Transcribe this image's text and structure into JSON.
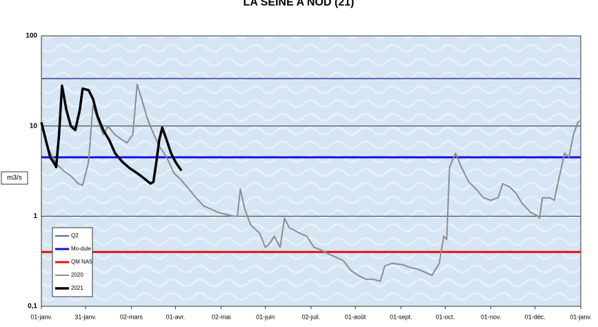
{
  "chart_data": {
    "type": "line",
    "title": "LA SEINE A NOD (21)",
    "y_label": "m3/s",
    "log_y": true,
    "grid": true,
    "legend": "lower left",
    "xlim": [
      0,
      366
    ],
    "xticks": [
      {
        "value": 0,
        "label": "01-janv."
      },
      {
        "value": 30,
        "label": "31-janv."
      },
      {
        "value": 61,
        "label": "02-mars"
      },
      {
        "value": 91,
        "label": "01-avr."
      },
      {
        "value": 122,
        "label": "02-mai"
      },
      {
        "value": 152,
        "label": "01-juin"
      },
      {
        "value": 183,
        "label": "02-juil."
      },
      {
        "value": 213,
        "label": "01-août"
      },
      {
        "value": 244,
        "label": "01-sept."
      },
      {
        "value": 274,
        "label": "01-oct."
      },
      {
        "value": 305,
        "label": "01-nov."
      },
      {
        "value": 335,
        "label": "01-déc."
      },
      {
        "value": 366,
        "label": "01-janv."
      }
    ],
    "ylim": [
      0.1,
      100
    ],
    "yticks": [
      {
        "value": 0.1,
        "label": "0,1"
      },
      1,
      10,
      100
    ],
    "series": [
      {
        "name": "Q2",
        "color": "#5b5fa8",
        "width": 2,
        "x": [
          0,
          366
        ],
        "values": [
          33.6,
          33.6
        ]
      },
      {
        "name": "Mo-dule",
        "color": "#1010e0",
        "width": 3,
        "x": [
          0,
          366
        ],
        "values": [
          4.5,
          4.5
        ]
      },
      {
        "name": "QM NA5",
        "color": "#e01010",
        "width": 3,
        "x": [
          0,
          366
        ],
        "values": [
          0.4,
          0.4
        ]
      },
      {
        "name": "2020",
        "color": "#8c8c8c",
        "width": 2,
        "x": [
          0,
          5,
          10,
          15,
          20,
          25,
          28,
          32,
          35,
          38,
          42,
          45,
          50,
          55,
          58,
          62,
          65,
          68,
          72,
          75,
          80,
          85,
          90,
          95,
          100,
          105,
          110,
          115,
          120,
          125,
          130,
          133,
          135,
          138,
          142,
          148,
          152,
          155,
          158,
          162,
          165,
          168,
          175,
          180,
          185,
          190,
          195,
          200,
          205,
          210,
          215,
          220,
          225,
          230,
          233,
          238,
          245,
          250,
          255,
          260,
          265,
          270,
          273,
          275,
          277,
          281,
          285,
          290,
          295,
          300,
          305,
          310,
          313,
          318,
          322,
          326,
          332,
          337,
          338,
          340,
          345,
          348,
          352,
          355,
          358,
          361,
          364,
          366
        ],
        "values": [
          10,
          5.5,
          3.8,
          3.2,
          2.8,
          2.3,
          2.2,
          4,
          17,
          12,
          8,
          10,
          8,
          7,
          6.5,
          8,
          29,
          20,
          12,
          9,
          6,
          4.5,
          3,
          2.5,
          2,
          1.6,
          1.3,
          1.2,
          1.1,
          1.05,
          1,
          1,
          2,
          1.2,
          0.8,
          0.65,
          0.45,
          0.5,
          0.6,
          0.45,
          0.95,
          0.75,
          0.65,
          0.6,
          0.45,
          0.42,
          0.38,
          0.35,
          0.32,
          0.25,
          0.22,
          0.2,
          0.2,
          0.19,
          0.28,
          0.3,
          0.29,
          0.27,
          0.26,
          0.24,
          0.22,
          0.3,
          0.6,
          0.55,
          3.5,
          5,
          3.5,
          2.4,
          2,
          1.6,
          1.5,
          1.6,
          2.3,
          2.1,
          1.8,
          1.4,
          1.1,
          1,
          0.95,
          1.6,
          1.6,
          1.5,
          3,
          5,
          4.5,
          8,
          11,
          11.5
        ]
      },
      {
        "name": "2021",
        "color": "#000000",
        "width": 3.5,
        "x": [
          0,
          3,
          6,
          9,
          10,
          12,
          14,
          17,
          20,
          23,
          26,
          28,
          32,
          35,
          38,
          42,
          46,
          50,
          55,
          60,
          65,
          70,
          74,
          76,
          78,
          80,
          82,
          85,
          88,
          91,
          95
        ],
        "values": [
          11,
          7,
          4.5,
          3.8,
          3.5,
          8,
          28,
          15,
          10,
          9,
          15,
          26,
          25,
          20,
          13,
          9,
          7,
          5,
          4,
          3.4,
          3,
          2.6,
          2.3,
          2.4,
          4,
          7,
          9.6,
          7,
          5,
          4,
          3.2
        ]
      }
    ]
  }
}
